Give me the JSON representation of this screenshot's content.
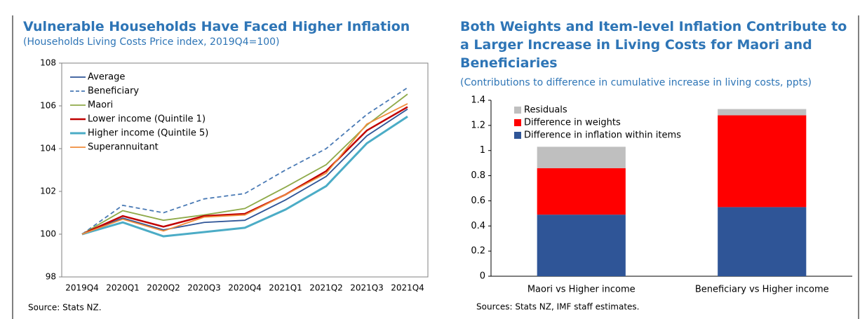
{
  "chart_data": [
    {
      "type": "line",
      "title": "Vulnerable Households Have Faced Higher Inflation",
      "subtitle": "(Households Living Costs Price index, 2019Q4=100)",
      "source": "Source: Stats NZ.",
      "categories": [
        "2019Q4",
        "2020Q1",
        "2020Q2",
        "2020Q3",
        "2020Q4",
        "2021Q1",
        "2021Q2",
        "2021Q3",
        "2021Q4"
      ],
      "ylim": [
        98,
        108
      ],
      "yticks": [
        98,
        100,
        102,
        104,
        106,
        108
      ],
      "series": [
        {
          "name": "Average",
          "color": "#2f5597",
          "values": [
            100,
            100.75,
            100.2,
            100.55,
            100.65,
            101.6,
            102.7,
            104.6,
            105.85
          ]
        },
        {
          "name": "Beneficiary",
          "color": "#4a7ab5",
          "dashed": true,
          "values": [
            100,
            101.35,
            101.0,
            101.65,
            101.9,
            103.0,
            104.0,
            105.6,
            106.85
          ]
        },
        {
          "name": "Maori",
          "color": "#8faa4a",
          "values": [
            100,
            101.1,
            100.65,
            100.9,
            101.2,
            102.2,
            103.25,
            105.1,
            106.55
          ]
        },
        {
          "name": "Lower income (Quintile 1)",
          "color": "#c00000",
          "values": [
            100,
            100.85,
            100.35,
            100.85,
            100.95,
            101.85,
            102.95,
            104.85,
            105.95
          ]
        },
        {
          "name": "Higher income (Quintile 5)",
          "color": "#4bacc6",
          "values": [
            100,
            100.55,
            99.9,
            100.1,
            100.3,
            101.15,
            102.25,
            104.25,
            105.5
          ]
        },
        {
          "name": "Superannuitant",
          "color": "#f08c3c",
          "values": [
            100,
            100.7,
            100.15,
            100.8,
            100.9,
            101.85,
            102.85,
            105.15,
            106.1
          ]
        }
      ]
    },
    {
      "type": "stacked-bar",
      "title": "Both Weights and Item-level Inflation Contribute to a Larger Increase in Living Costs for Maori and Beneficiaries",
      "subtitle": "(Contributions to difference in cumulative increase in living costs, ppts)",
      "source": "Sources: Stats NZ, IMF staff estimates.",
      "categories": [
        "Maori vs Higher income",
        "Beneficiary vs Higher income"
      ],
      "ylim": [
        0,
        1.4
      ],
      "yticks": [
        0,
        0.2,
        0.4,
        0.6,
        0.8,
        1,
        1.2,
        1.4
      ],
      "series": [
        {
          "name": "Difference in inflation within items",
          "color": "#2f5597",
          "values": [
            0.49,
            0.55
          ]
        },
        {
          "name": "Difference in weights",
          "color": "#ff0000",
          "values": [
            0.37,
            0.73
          ]
        },
        {
          "name": "Residuals",
          "color": "#bfbfbf",
          "values": [
            0.17,
            0.05
          ]
        }
      ]
    }
  ]
}
